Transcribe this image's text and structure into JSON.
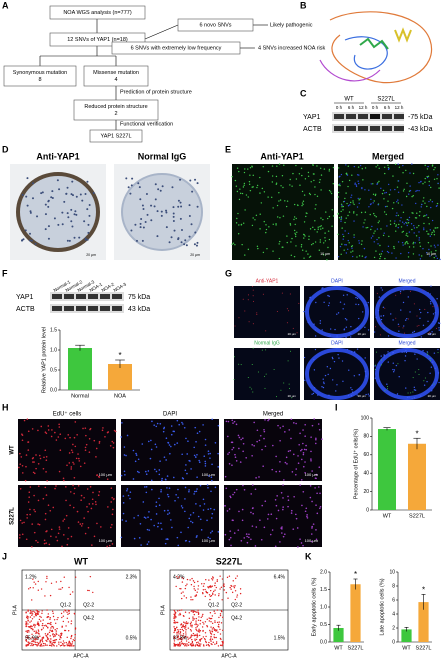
{
  "panel_labels": [
    "A",
    "B",
    "C",
    "D",
    "E",
    "F",
    "G",
    "H",
    "I",
    "J",
    "K"
  ],
  "flowchart": {
    "nodes": [
      [
        "NOA WGS analysis (n=777)"
      ],
      [
        "12 SNVs of YAP1 (n=18)"
      ],
      [
        "6 novo SNVs"
      ],
      [
        "6 SNVs with extremely low frequency"
      ],
      [
        "Synonymous mutation",
        "8"
      ],
      [
        "Missense mutation",
        "4"
      ],
      [
        "Reduced protein structure",
        "2"
      ],
      [
        "YAP1 S227L"
      ]
    ],
    "side_notes": [
      "Likely pathogenic",
      "4 SNVs increased NOA risk"
    ],
    "edge_labels": [
      "Prediction of protein structure",
      "Functional verification"
    ]
  },
  "blot_c": {
    "groups": [
      "WT",
      "S227L"
    ],
    "lanes": [
      "0 h",
      "6 h",
      "12 h",
      "0 h",
      "6 h",
      "12 h"
    ],
    "proteins": [
      "YAP1",
      "ACTB"
    ],
    "sizes": [
      "-75 kDa",
      "-43 kDa"
    ]
  },
  "ihc_d": {
    "titles": [
      "Anti-YAP1",
      "Normal IgG"
    ],
    "scale": [
      "20 μm",
      "20 μm"
    ]
  },
  "if_e": {
    "titles": [
      "Anti-YAP1",
      "Merged"
    ],
    "scale": [
      "10 μm",
      "10 μm"
    ]
  },
  "blot_f": {
    "lanes": [
      "Normal-1",
      "Normal-2",
      "Normal-3",
      "NOA-1",
      "NOA-2",
      "NOA-3"
    ],
    "proteins": [
      "YAP1",
      "ACTB"
    ],
    "sizes": [
      "75 kDa",
      "43 kDa"
    ]
  },
  "if_g": {
    "rows": [
      [
        "Anti-YAP1",
        "DAPI",
        "Merged"
      ],
      [
        "Normal IgG",
        "DAPI",
        "Merged"
      ]
    ],
    "scale": "20 μm"
  },
  "edu_h": {
    "columns": [
      "EdU⁺ cells",
      "DAPI",
      "Merged"
    ],
    "rows": [
      "WT",
      "S227L"
    ],
    "scale": "100 μm"
  },
  "flow_j": {
    "panels": [
      {
        "title": "WT",
        "quadrants": [
          "1.2%",
          "2.3%",
          "95.9%",
          "0.5%"
        ]
      },
      {
        "title": "S227L",
        "quadrants": [
          "4.2%",
          "6.4%",
          "87.8%",
          "1.5%"
        ]
      }
    ],
    "gates": [
      "Q1-2",
      "Q2-2",
      "Q4-2"
    ],
    "x_label": "APC-A",
    "y_label": "PI-A"
  },
  "chart_data": [
    {
      "type": "bar",
      "ylabel": "Relative YAP1 protein level",
      "categories": [
        "Normal",
        "NOA"
      ],
      "values": [
        1.05,
        0.65
      ],
      "errors": [
        0.07,
        0.1
      ],
      "colors": [
        "#3ec73e",
        "#f5a83a"
      ],
      "significance": [
        null,
        "*"
      ],
      "ylim": [
        0,
        1.5
      ],
      "yticks": [
        {
          "value": 0,
          "label": "0.0"
        },
        0.5,
        {
          "value": 1,
          "label": "1.0"
        },
        1.5
      ]
    },
    {
      "type": "bar",
      "ylabel": "Percentage of EdU⁺ cells(%)",
      "categories": [
        "WT",
        "S227L"
      ],
      "values": [
        88,
        72
      ],
      "errors": [
        1.5,
        6
      ],
      "colors": [
        "#3ec73e",
        "#f5a83a"
      ],
      "significance": [
        null,
        "*"
      ],
      "ylim": [
        0,
        100
      ],
      "yticks": [
        0,
        20,
        40,
        60,
        80,
        100
      ]
    },
    {
      "type": "bar",
      "ylabel": "Early apoptotic cells (%)",
      "categories": [
        "WT",
        "S227L"
      ],
      "values": [
        0.4,
        1.65
      ],
      "errors": [
        0.08,
        0.15
      ],
      "colors": [
        "#3ec73e",
        "#f5a83a"
      ],
      "significance": [
        null,
        "*"
      ],
      "ylim": [
        0,
        2
      ],
      "yticks": [
        {
          "value": 0,
          "label": "0.0"
        },
        0.5,
        {
          "value": 1,
          "label": "1.0"
        },
        1.5,
        {
          "value": 2,
          "label": "2.0"
        }
      ]
    },
    {
      "type": "bar",
      "ylabel": "Late apoptotic cells (%)",
      "categories": [
        "WT",
        "S227L"
      ],
      "values": [
        1.8,
        5.7
      ],
      "errors": [
        0.3,
        1.1
      ],
      "colors": [
        "#3ec73e",
        "#f5a83a"
      ],
      "significance": [
        null,
        "*"
      ],
      "ylim": [
        0,
        10
      ],
      "yticks": [
        0,
        2,
        4,
        6,
        8,
        10
      ]
    }
  ]
}
